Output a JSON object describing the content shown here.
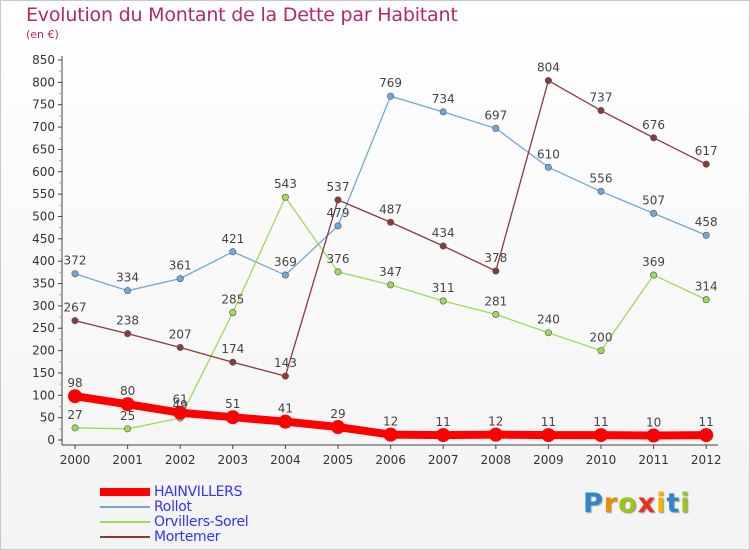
{
  "title": "Evolution du Montant de la Dette par Habitant",
  "unit_label": "(en €)",
  "logo": {
    "text": "Proxiti",
    "letter_colors": [
      "#2e86c8",
      "#f08c00",
      "#9ac31c",
      "#e8301c",
      "#f0b400",
      "#2e86c8",
      "#9ac31c"
    ]
  },
  "chart_data": {
    "type": "line",
    "title": "Evolution du Montant de la Dette par Habitant",
    "ylabel": "(en €)",
    "xlabel": "",
    "x": [
      "2000",
      "2001",
      "2002",
      "2003",
      "2004",
      "2005",
      "2006",
      "2007",
      "2008",
      "2009",
      "2010",
      "2011",
      "2012"
    ],
    "ylim": [
      0,
      850
    ],
    "yticks": [
      0,
      50,
      100,
      150,
      200,
      250,
      300,
      350,
      400,
      450,
      500,
      550,
      600,
      650,
      700,
      750,
      800,
      850
    ],
    "grid": false,
    "legend_position": "bottom-left",
    "series": [
      {
        "name": "HAINVILLERS",
        "color": "#ff0000",
        "emphasis": true,
        "values": [
          98,
          80,
          61,
          51,
          41,
          29,
          12,
          11,
          12,
          11,
          11,
          10,
          11
        ]
      },
      {
        "name": "Rollot",
        "color": "#6fa8dc",
        "values": [
          372,
          334,
          361,
          421,
          369,
          479,
          769,
          734,
          697,
          610,
          556,
          507,
          458
        ]
      },
      {
        "name": "Orvillers-Sorel",
        "color": "#9bdc5a",
        "values": [
          27,
          25,
          49,
          285,
          543,
          376,
          347,
          311,
          281,
          240,
          200,
          369,
          314
        ]
      },
      {
        "name": "Mortemer",
        "color": "#8b3a3a",
        "values": [
          267,
          238,
          207,
          174,
          143,
          537,
          487,
          434,
          378,
          804,
          737,
          676,
          617
        ]
      }
    ]
  }
}
